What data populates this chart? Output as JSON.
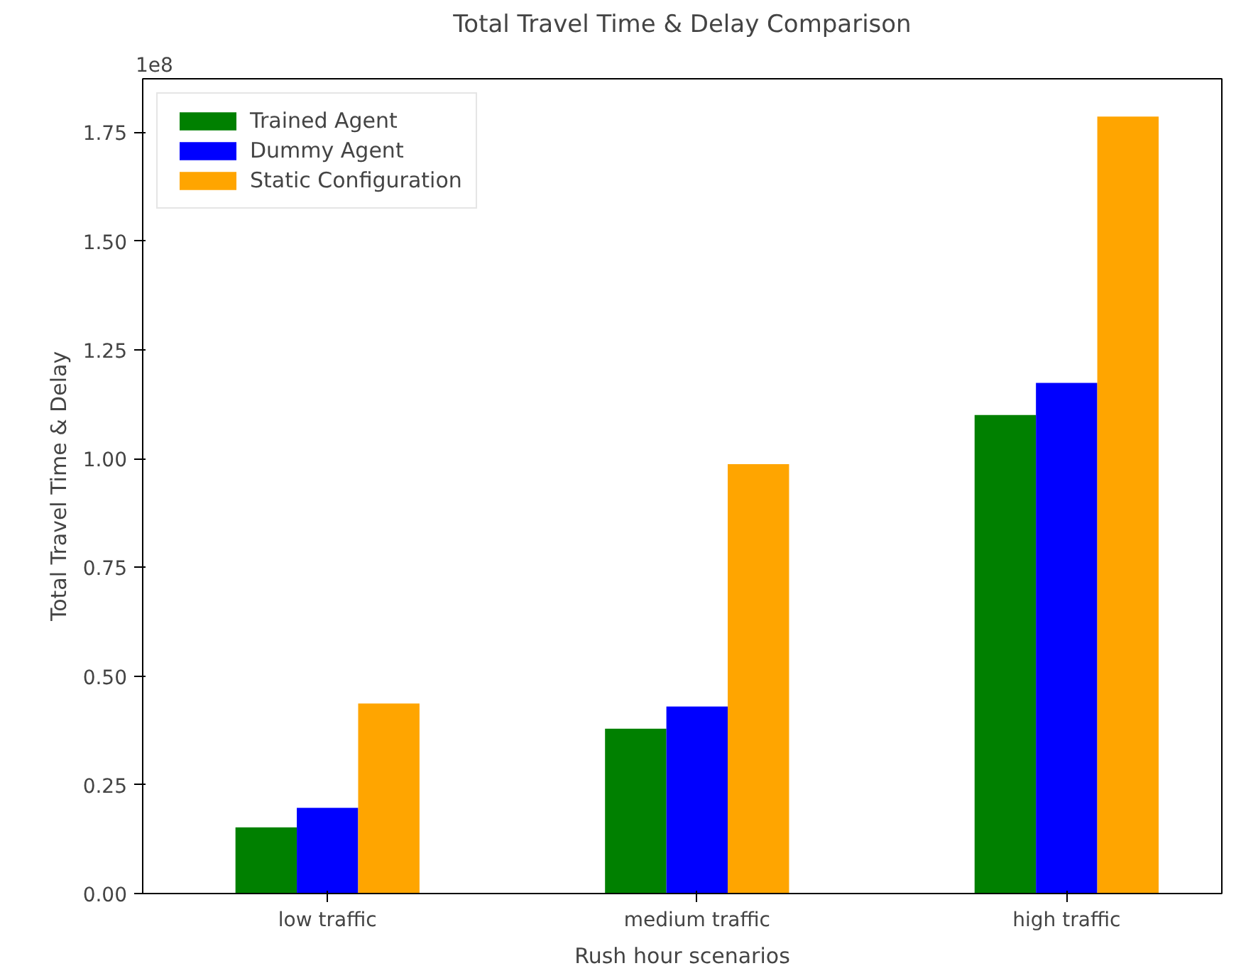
{
  "chart_data": {
    "type": "bar",
    "title": "Total Travel Time & Delay Comparison",
    "xlabel": "Rush hour scenarios",
    "ylabel": "Total Travel Time & Delay",
    "categories": [
      "low traffic",
      "medium traffic",
      "high traffic"
    ],
    "series": [
      {
        "name": "Trained Agent",
        "color": "#008000",
        "values": [
          0.152,
          0.379,
          1.1
        ]
      },
      {
        "name": "Dummy Agent",
        "color": "#0000ff",
        "values": [
          0.197,
          0.43,
          1.174
        ]
      },
      {
        "name": "Static Configuration",
        "color": "#ffa500",
        "values": [
          0.437,
          0.987,
          1.786
        ]
      }
    ],
    "ylim": [
      0,
      1.873
    ],
    "yticks": [
      {
        "value": 0,
        "label": "0.00"
      },
      {
        "value": 0.25,
        "label": "0.25"
      },
      {
        "value": 0.5,
        "label": "0.50"
      },
      {
        "value": 0.75,
        "label": "0.75"
      },
      {
        "value": 1,
        "label": "1.00"
      },
      {
        "value": 1.25,
        "label": "1.25"
      },
      {
        "value": 1.5,
        "label": "1.50"
      },
      {
        "value": 1.75,
        "label": "1.75"
      }
    ],
    "annotations": [
      "1e8"
    ],
    "legend": "top left",
    "grid": false
  }
}
